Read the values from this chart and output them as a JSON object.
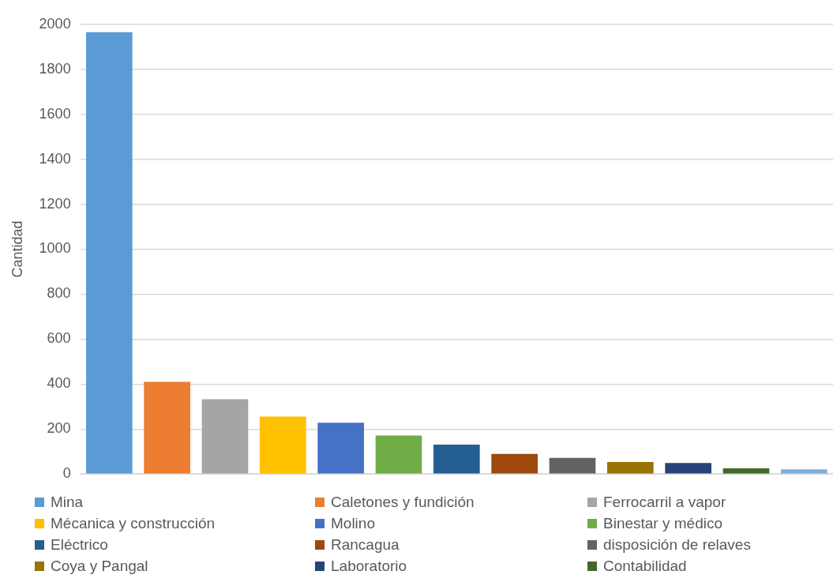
{
  "chart_data": {
    "type": "bar",
    "ylabel": "Cantidad",
    "categories": [
      null
    ],
    "series": [
      {
        "name": "Mina",
        "color": "#5b9bd5",
        "values": [
          1965
        ]
      },
      {
        "name": "Caletones y fundición",
        "color": "#ed7d31",
        "values": [
          410
        ]
      },
      {
        "name": "Ferrocarril a vapor",
        "color": "#a5a5a5",
        "values": [
          333
        ]
      },
      {
        "name": "Mécanica y construcción",
        "color": "#ffc000",
        "values": [
          255
        ]
      },
      {
        "name": "Molino",
        "color": "#4472c4",
        "values": [
          228
        ]
      },
      {
        "name": "Binestar y médico",
        "color": "#70ad47",
        "values": [
          171
        ]
      },
      {
        "name": "Eléctrico",
        "color": "#255e91",
        "values": [
          131
        ]
      },
      {
        "name": "Rancagua",
        "color": "#9e480e",
        "values": [
          89
        ]
      },
      {
        "name": "disposición de relaves",
        "color": "#636363",
        "values": [
          72
        ]
      },
      {
        "name": "Coya y Pangal",
        "color": "#997300",
        "values": [
          53
        ]
      },
      {
        "name": "Laboratorio",
        "color": "#264478",
        "values": [
          49
        ]
      },
      {
        "name": "Contabilidad",
        "color": "#43682b",
        "values": [
          25
        ]
      },
      {
        "color": "#7cafdd",
        "values": [
          21
        ]
      }
    ],
    "ylim": [
      0,
      2000
    ],
    "yticks": [
      0,
      200,
      400,
      600,
      800,
      1000,
      1200,
      1400,
      1600,
      1800,
      2000
    ],
    "grid": "y",
    "legend": "bottom"
  }
}
